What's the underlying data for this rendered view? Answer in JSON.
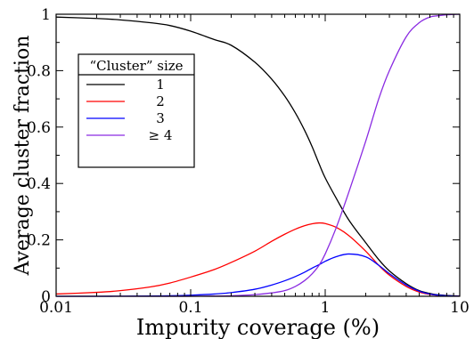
{
  "chart_data": {
    "type": "line",
    "xlabel": "Impurity coverage (%)",
    "ylabel": "Average cluster fraction",
    "xscale": "log",
    "xlim": [
      0.01,
      10
    ],
    "ylim": [
      0,
      1
    ],
    "xticks": [
      0.01,
      0.1,
      1,
      10
    ],
    "xtick_labels": [
      "0.01",
      "0.1",
      "1",
      "10"
    ],
    "yticks": [
      0,
      0.2,
      0.4,
      0.6,
      0.8,
      1
    ],
    "ytick_labels": [
      "0",
      "0.2",
      "0.4",
      "0.6",
      "0.8",
      "1"
    ],
    "grid": false,
    "legend": {
      "title": "“Cluster” size",
      "position": "upper-left"
    },
    "series": [
      {
        "name": "1",
        "color": "#000000",
        "x": [
          0.01,
          0.02,
          0.03,
          0.05,
          0.07,
          0.1,
          0.15,
          0.2,
          0.3,
          0.4,
          0.5,
          0.6,
          0.7,
          0.8,
          0.9,
          1,
          1.2,
          1.5,
          2,
          2.5,
          3,
          4,
          5,
          6,
          7,
          8,
          10
        ],
        "y": [
          0.99,
          0.985,
          0.98,
          0.97,
          0.96,
          0.94,
          0.91,
          0.89,
          0.83,
          0.77,
          0.71,
          0.65,
          0.59,
          0.53,
          0.47,
          0.42,
          0.35,
          0.27,
          0.19,
          0.13,
          0.09,
          0.045,
          0.02,
          0.01,
          0.005,
          0.003,
          0.001
        ]
      },
      {
        "name": "2",
        "color": "#ff0000",
        "x": [
          0.01,
          0.02,
          0.03,
          0.05,
          0.07,
          0.1,
          0.15,
          0.2,
          0.3,
          0.4,
          0.5,
          0.6,
          0.7,
          0.8,
          0.9,
          1,
          1.2,
          1.5,
          2,
          2.5,
          3,
          4,
          5,
          6,
          7,
          8,
          10
        ],
        "y": [
          0.008,
          0.014,
          0.02,
          0.033,
          0.047,
          0.068,
          0.095,
          0.12,
          0.16,
          0.195,
          0.22,
          0.238,
          0.25,
          0.257,
          0.26,
          0.258,
          0.245,
          0.215,
          0.16,
          0.11,
          0.075,
          0.035,
          0.015,
          0.007,
          0.003,
          0.0015,
          0.0005
        ]
      },
      {
        "name": "3",
        "color": "#0000ff",
        "x": [
          0.01,
          0.02,
          0.03,
          0.05,
          0.07,
          0.1,
          0.15,
          0.2,
          0.3,
          0.4,
          0.5,
          0.6,
          0.7,
          0.8,
          0.9,
          1,
          1.2,
          1.5,
          2,
          2.5,
          3,
          4,
          5,
          6,
          7,
          8,
          10
        ],
        "y": [
          0,
          0,
          0.0005,
          0.001,
          0.002,
          0.004,
          0.008,
          0.013,
          0.025,
          0.04,
          0.055,
          0.07,
          0.085,
          0.1,
          0.112,
          0.124,
          0.14,
          0.15,
          0.14,
          0.11,
          0.08,
          0.04,
          0.018,
          0.008,
          0.004,
          0.002,
          0.0005
        ]
      },
      {
        "name": "≥ 4",
        "color": "#8a2be2",
        "x": [
          0.01,
          0.02,
          0.03,
          0.05,
          0.07,
          0.1,
          0.15,
          0.2,
          0.3,
          0.4,
          0.5,
          0.6,
          0.7,
          0.8,
          0.9,
          1,
          1.2,
          1.5,
          2,
          2.5,
          3,
          4,
          5,
          6,
          7,
          8,
          10
        ],
        "y": [
          0,
          0,
          0,
          0,
          0,
          0,
          0.001,
          0.002,
          0.006,
          0.012,
          0.02,
          0.035,
          0.055,
          0.08,
          0.11,
          0.15,
          0.24,
          0.37,
          0.55,
          0.7,
          0.8,
          0.92,
          0.97,
          0.99,
          0.995,
          0.998,
          1.0
        ]
      }
    ]
  }
}
